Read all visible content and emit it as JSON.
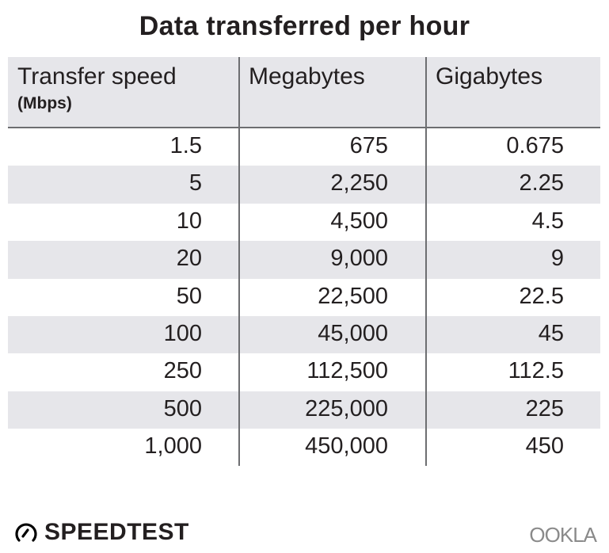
{
  "title": "Data transferred per hour",
  "chart_data": {
    "type": "table",
    "title": "Data transferred per hour",
    "columns": [
      {
        "label": "Transfer speed",
        "sublabel": "(Mbps)"
      },
      {
        "label": "Megabytes"
      },
      {
        "label": "Gigabytes"
      }
    ],
    "rows": [
      [
        "1.5",
        "675",
        "0.675"
      ],
      [
        "5",
        "2,250",
        "2.25"
      ],
      [
        "10",
        "4,500",
        "4.5"
      ],
      [
        "20",
        "9,000",
        "9"
      ],
      [
        "50",
        "22,500",
        "22.5"
      ],
      [
        "100",
        "45,000",
        "45"
      ],
      [
        "250",
        "112,500",
        "112.5"
      ],
      [
        "500",
        "225,000",
        "225"
      ],
      [
        "1,000",
        "450,000",
        "450"
      ]
    ]
  },
  "colors": {
    "header_bg": "#e6e6ea",
    "alt_row_bg": "#e6e6ea",
    "rule": "#6d6e71",
    "text": "#231f20"
  },
  "branding": {
    "left_logo": "SPEEDTEST",
    "right_logo": "OOKLA"
  }
}
